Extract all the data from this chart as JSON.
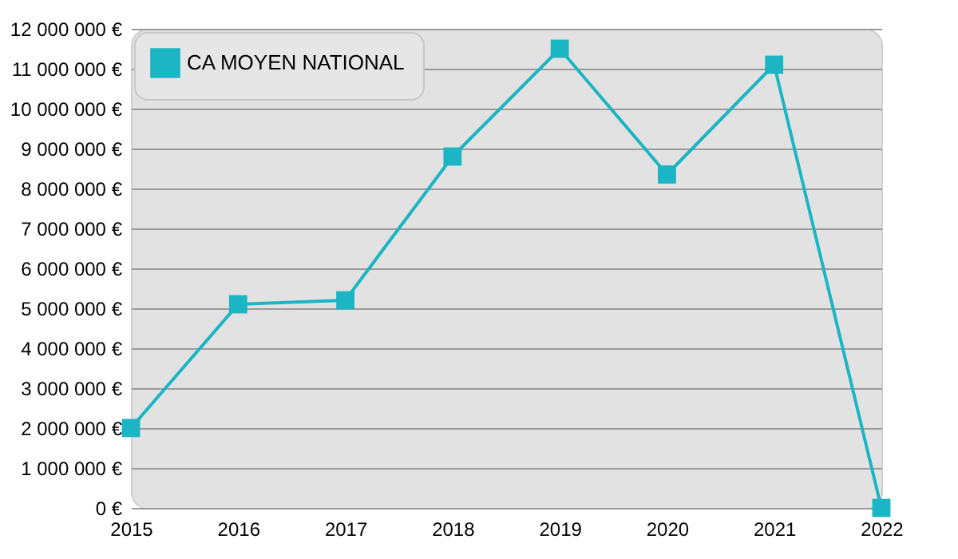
{
  "chart_data": {
    "type": "line",
    "categories": [
      "2015",
      "2016",
      "2017",
      "2018",
      "2019",
      "2020",
      "2021",
      "2022"
    ],
    "series": [
      {
        "name": "CA MOYEN NATIONAL",
        "color": "#1cb5c4",
        "values": [
          2000000,
          5100000,
          5200000,
          8800000,
          11500000,
          8350000,
          11100000,
          0
        ]
      }
    ],
    "ylim": [
      0,
      12000000
    ],
    "yticks": [
      {
        "value": 0,
        "label": "0 €"
      },
      {
        "value": 1000000,
        "label": "1 000 000 €"
      },
      {
        "value": 2000000,
        "label": "2 000 000 €"
      },
      {
        "value": 3000000,
        "label": "3 000 000 €"
      },
      {
        "value": 4000000,
        "label": "4 000 000 €"
      },
      {
        "value": 5000000,
        "label": "5 000 000 €"
      },
      {
        "value": 6000000,
        "label": "6 000 000 €"
      },
      {
        "value": 7000000,
        "label": "7 000 000 €"
      },
      {
        "value": 8000000,
        "label": "8 000 000 €"
      },
      {
        "value": 9000000,
        "label": "9 000 000 €"
      },
      {
        "value": 10000000,
        "label": "10 000 000 €"
      },
      {
        "value": 11000000,
        "label": "11 000 000 €"
      },
      {
        "value": 12000000,
        "label": "12 000 000 €"
      }
    ],
    "grid": "y",
    "legend": "top left",
    "marker": "square",
    "line_style": "solid"
  }
}
